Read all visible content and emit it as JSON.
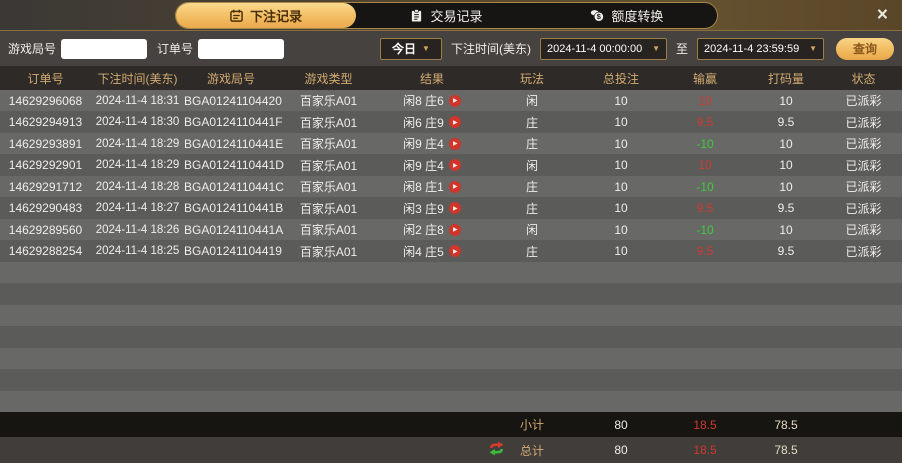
{
  "window": {
    "close_glyph": "×"
  },
  "tabs": [
    {
      "label": "下注记录",
      "icon": "ledger-icon",
      "active": true
    },
    {
      "label": "交易记录",
      "icon": "clipboard-icon",
      "active": false
    },
    {
      "label": "额度转换",
      "icon": "coins-icon",
      "active": false
    }
  ],
  "filters": {
    "game_round_label": "游戏局号",
    "game_round_value": "",
    "order_no_label": "订单号",
    "order_no_value": "",
    "range_preset": "今日",
    "dropdown_arrow": "▼",
    "bet_time_label": "下注时间(美东)",
    "time_from": "2024-11-4 00:00:00",
    "to_label": "至",
    "time_to": "2024-11-4 23:59:59",
    "query_label": "查询"
  },
  "table": {
    "columns": [
      "订单号",
      "下注时间(美东)",
      "游戏局号",
      "游戏类型",
      "结果",
      "玩法",
      "总投注",
      "输赢",
      "打码量",
      "状态"
    ],
    "play_glyph": "▶",
    "rows": [
      {
        "order": "14629296068",
        "time": "2024-11-4 18:31",
        "round": "BGA01241104420",
        "game": "百家乐A01",
        "result": "闲8 庄6",
        "play": "闲",
        "bet": "10",
        "winloss": "10",
        "rolling": "10",
        "status": "已派彩"
      },
      {
        "order": "14629294913",
        "time": "2024-11-4 18:30",
        "round": "BGA0124110441F",
        "game": "百家乐A01",
        "result": "闲6 庄9",
        "play": "庄",
        "bet": "10",
        "winloss": "9.5",
        "rolling": "9.5",
        "status": "已派彩"
      },
      {
        "order": "14629293891",
        "time": "2024-11-4 18:29",
        "round": "BGA0124110441E",
        "game": "百家乐A01",
        "result": "闲9 庄4",
        "play": "庄",
        "bet": "10",
        "winloss": "-10",
        "rolling": "10",
        "status": "已派彩"
      },
      {
        "order": "14629292901",
        "time": "2024-11-4 18:29",
        "round": "BGA0124110441D",
        "game": "百家乐A01",
        "result": "闲9 庄4",
        "play": "闲",
        "bet": "10",
        "winloss": "10",
        "rolling": "10",
        "status": "已派彩"
      },
      {
        "order": "14629291712",
        "time": "2024-11-4 18:28",
        "round": "BGA0124110441C",
        "game": "百家乐A01",
        "result": "闲8 庄1",
        "play": "庄",
        "bet": "10",
        "winloss": "-10",
        "rolling": "10",
        "status": "已派彩"
      },
      {
        "order": "14629290483",
        "time": "2024-11-4 18:27",
        "round": "BGA0124110441B",
        "game": "百家乐A01",
        "result": "闲3 庄9",
        "play": "庄",
        "bet": "10",
        "winloss": "9.5",
        "rolling": "9.5",
        "status": "已派彩"
      },
      {
        "order": "14629289560",
        "time": "2024-11-4 18:26",
        "round": "BGA0124110441A",
        "game": "百家乐A01",
        "result": "闲2 庄8",
        "play": "闲",
        "bet": "10",
        "winloss": "-10",
        "rolling": "10",
        "status": "已派彩"
      },
      {
        "order": "14629288254",
        "time": "2024-11-4 18:25",
        "round": "BGA01241104419",
        "game": "百家乐A01",
        "result": "闲4 庄5",
        "play": "庄",
        "bet": "10",
        "winloss": "9.5",
        "rolling": "9.5",
        "status": "已派彩"
      }
    ],
    "subtotal": {
      "label": "小计",
      "bet": "80",
      "winloss": "18.5",
      "rolling": "78.5"
    },
    "total": {
      "label": "总计",
      "bet": "80",
      "winloss": "18.5",
      "rolling": "78.5"
    }
  },
  "colors": {
    "accent_gold": "#f3bd61",
    "header_text": "#d3ab72",
    "win_red": "#cf3a30",
    "loss_green": "#3ecb3e"
  }
}
